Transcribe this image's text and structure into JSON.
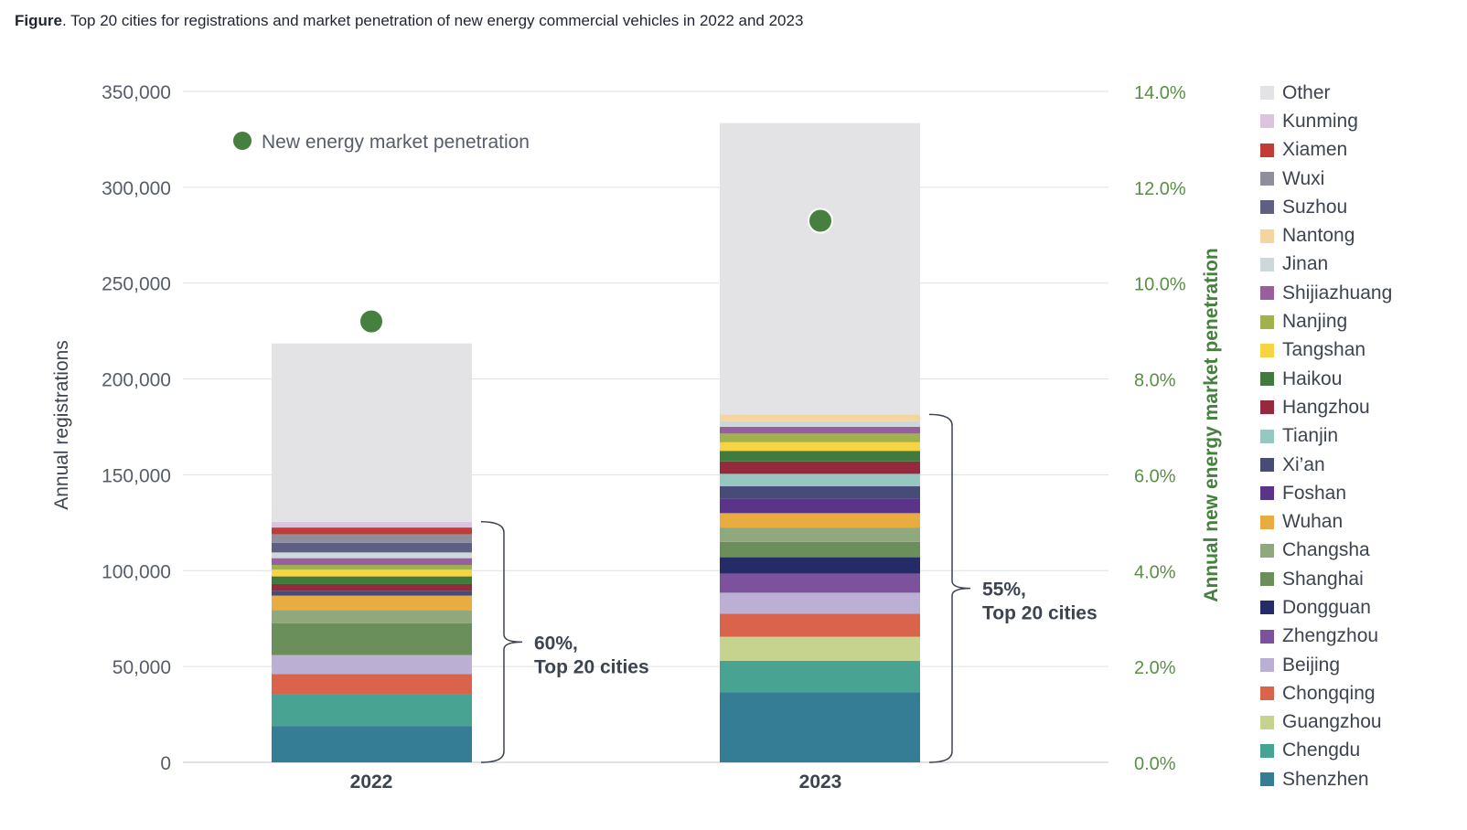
{
  "figure": {
    "label": "Figure",
    "caption": ". Top 20 cities for registrations and market penetration of new energy commercial vehicles in 2022 and 2023"
  },
  "chart_data": {
    "type": "bar",
    "stacked": true,
    "categories": [
      "2022",
      "2023"
    ],
    "ylabel": "Annual registrations",
    "y2label": "Annual new energy market penetration",
    "ylim": [
      0,
      350000
    ],
    "y2lim": [
      0,
      14
    ],
    "yticks": [
      "0",
      "50,000",
      "100,000",
      "150,000",
      "200,000",
      "250,000",
      "300,000",
      "350,000"
    ],
    "y2ticks": [
      "0.0%",
      "2.0%",
      "4.0%",
      "6.0%",
      "8.0%",
      "10.0%",
      "12.0%",
      "14.0%"
    ],
    "grid": true,
    "legend_position": "right",
    "series": [
      {
        "name": "Shenzhen",
        "color": "#357d94",
        "values": [
          19000,
          36500
        ]
      },
      {
        "name": "Chengdu",
        "color": "#48a393",
        "values": [
          16500,
          16500
        ]
      },
      {
        "name": "Guangzhou",
        "color": "#c6d38f",
        "values": [
          0,
          12500
        ]
      },
      {
        "name": "Chongqing",
        "color": "#d9644b",
        "values": [
          10500,
          12000
        ]
      },
      {
        "name": "Beijing",
        "color": "#bbafd3",
        "values": [
          10000,
          11000
        ]
      },
      {
        "name": "Zhengzhou",
        "color": "#7b529b",
        "values": [
          0,
          10000
        ]
      },
      {
        "name": "Dongguan",
        "color": "#252b66",
        "values": [
          0,
          8500
        ]
      },
      {
        "name": "Shanghai",
        "color": "#6b8f5a",
        "values": [
          16500,
          8000
        ]
      },
      {
        "name": "Changsha",
        "color": "#8fa87d",
        "values": [
          7000,
          7500
        ]
      },
      {
        "name": "Wuhan",
        "color": "#e8ac40",
        "values": [
          7500,
          7500
        ]
      },
      {
        "name": "Foshan",
        "color": "#593488",
        "values": [
          0,
          7500
        ]
      },
      {
        "name": "Xi'an",
        "color": "#474b78",
        "values": [
          2500,
          6500
        ]
      },
      {
        "name": "Tianjin",
        "color": "#96c7c0",
        "values": [
          0,
          6500
        ]
      },
      {
        "name": "Hangzhou",
        "color": "#952a3c",
        "values": [
          3500,
          6500
        ]
      },
      {
        "name": "Haikou",
        "color": "#407b3d",
        "values": [
          4000,
          5500
        ]
      },
      {
        "name": "Tangshan",
        "color": "#f6d443",
        "values": [
          3500,
          4500
        ]
      },
      {
        "name": "Nanjing",
        "color": "#9fb24e",
        "values": [
          2500,
          4500
        ]
      },
      {
        "name": "Shijiazhuang",
        "color": "#995e9e",
        "values": [
          3500,
          3500
        ]
      },
      {
        "name": "Jinan",
        "color": "#cdd8da",
        "values": [
          3000,
          3000
        ]
      },
      {
        "name": "Nantong",
        "color": "#f4d5a0",
        "values": [
          0,
          3500
        ]
      },
      {
        "name": "Suzhou",
        "color": "#5f5f86",
        "values": [
          5000,
          0
        ]
      },
      {
        "name": "Wuxi",
        "color": "#8e8e9c",
        "values": [
          4500,
          0
        ]
      },
      {
        "name": "Xiamen",
        "color": "#c03c35",
        "values": [
          3500,
          0
        ]
      },
      {
        "name": "Kunming",
        "color": "#dcc4df",
        "values": [
          3000,
          0
        ]
      },
      {
        "name": "Other",
        "color": "#e3e3e6",
        "values": [
          93000,
          152000
        ]
      }
    ],
    "penetration": {
      "name": "New energy market penetration",
      "color": "#46803f",
      "values": [
        9.2,
        11.3
      ]
    },
    "annotations": [
      {
        "category": "2022",
        "line1": "60%,",
        "line2": "Top 20 cities"
      },
      {
        "category": "2023",
        "line1": "55%,",
        "line2": "Top 20 cities"
      }
    ]
  }
}
